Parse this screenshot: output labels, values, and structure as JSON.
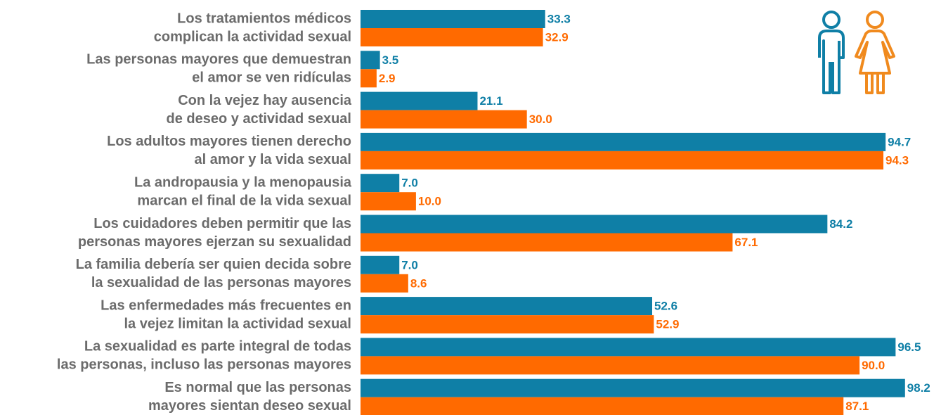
{
  "chart_data": {
    "type": "bar",
    "orientation": "horizontal",
    "categories": [
      [
        "Los tratamientos médicos",
        "complican la actividad sexual"
      ],
      [
        "Las personas mayores que demuestran",
        "el amor se ven ridículas"
      ],
      [
        "Con la vejez hay ausencia",
        "de deseo y actividad sexual"
      ],
      [
        "Los adultos mayores tienen derecho",
        "al amor y la vida sexual"
      ],
      [
        "La andropausia y la menopausia",
        "marcan el final de la vida sexual"
      ],
      [
        "Los cuidadores deben permitir que las",
        "personas mayores ejerzan su sexualidad"
      ],
      [
        "La familia debería ser quien decida sobre",
        "la sexualidad de las personas mayores"
      ],
      [
        "Las enfermedades más frecuentes en",
        "la vejez limitan la actividad sexual"
      ],
      [
        "La sexualidad es parte integral de todas",
        "las personas, incluso las personas mayores"
      ],
      [
        "Es normal que las personas",
        "mayores sientan deseo sexual"
      ]
    ],
    "series": [
      {
        "color": "#0f7fa6",
        "values": [
          33.3,
          3.5,
          21.1,
          94.7,
          7.0,
          84.2,
          7.0,
          52.6,
          96.5,
          98.2
        ],
        "value_labels": [
          "33.3",
          "3.5",
          "21.1",
          "94.7",
          "7.0",
          "84.2",
          "7.0",
          "52.6",
          "96.5",
          "98.2"
        ]
      },
      {
        "color": "#ff6a00",
        "values": [
          32.9,
          2.9,
          30.0,
          94.3,
          10.0,
          67.1,
          8.6,
          52.9,
          90.0,
          87.1
        ],
        "value_labels": [
          "32.9",
          "2.9",
          "30.0",
          "94.3",
          "10.0",
          "67.1",
          "8.6",
          "52.9",
          "90.0",
          "87.1"
        ]
      }
    ],
    "xlim": [
      0,
      100
    ]
  }
}
